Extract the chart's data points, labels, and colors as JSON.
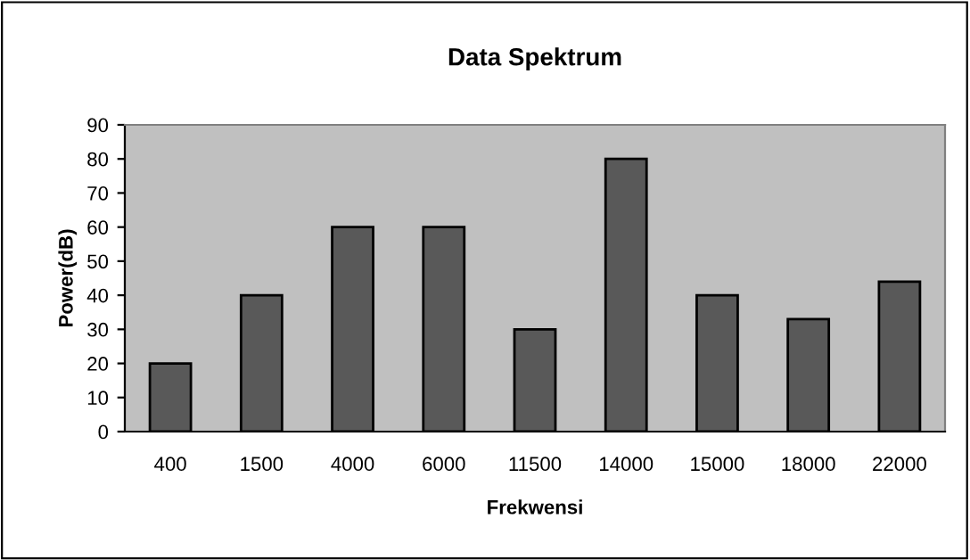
{
  "chart_data": {
    "type": "bar",
    "title": "Data Spektrum",
    "xlabel": "Frekwensi",
    "ylabel": "Power(dB)",
    "categories": [
      "400",
      "1500",
      "4000",
      "6000",
      "11500",
      "14000",
      "15000",
      "18000",
      "22000"
    ],
    "values": [
      20,
      40,
      60,
      60,
      30,
      80,
      40,
      33,
      44
    ],
    "color": "#595959",
    "ylim": [
      0,
      90
    ],
    "yticks": [
      0,
      10,
      20,
      30,
      40,
      50,
      60,
      70,
      80,
      90
    ],
    "grid": false,
    "legend": false
  }
}
